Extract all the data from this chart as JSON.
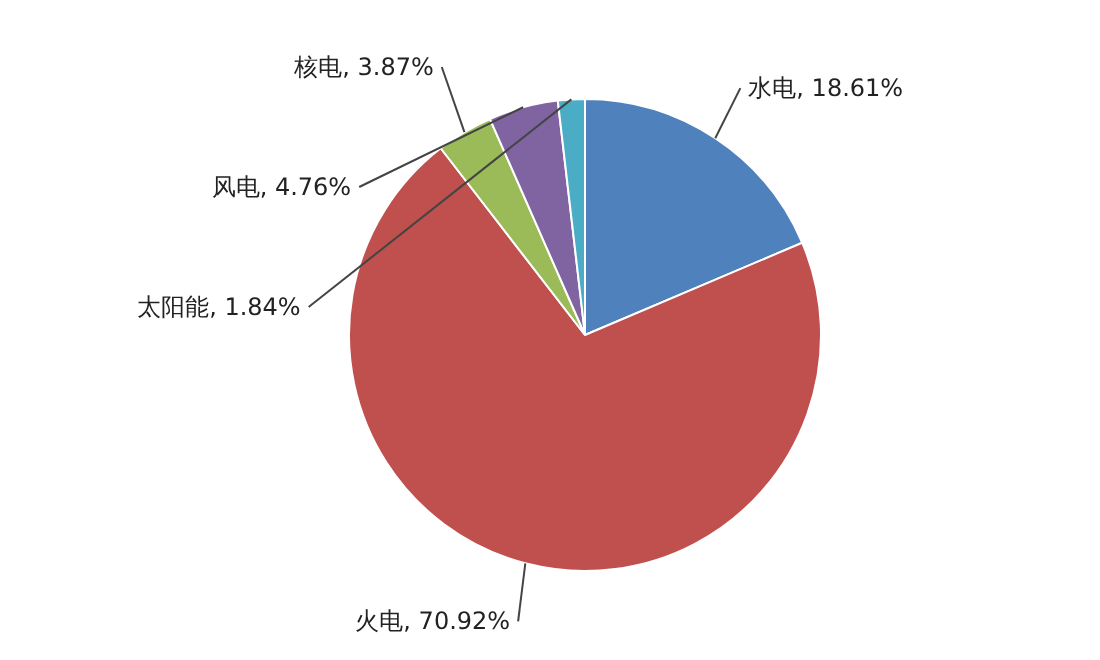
{
  "chart_data": {
    "type": "pie",
    "categories": [
      "水电",
      "火电",
      "核电",
      "风电",
      "太阳能"
    ],
    "values": [
      18.61,
      70.92,
      3.87,
      4.76,
      1.84
    ],
    "value_labels": [
      "18.61%",
      "70.92%",
      "3.87%",
      "4.76%",
      "1.84%"
    ],
    "colors": [
      "#4f81bd",
      "#c0504d",
      "#9bbb59",
      "#8064a2",
      "#4bacc6"
    ]
  }
}
